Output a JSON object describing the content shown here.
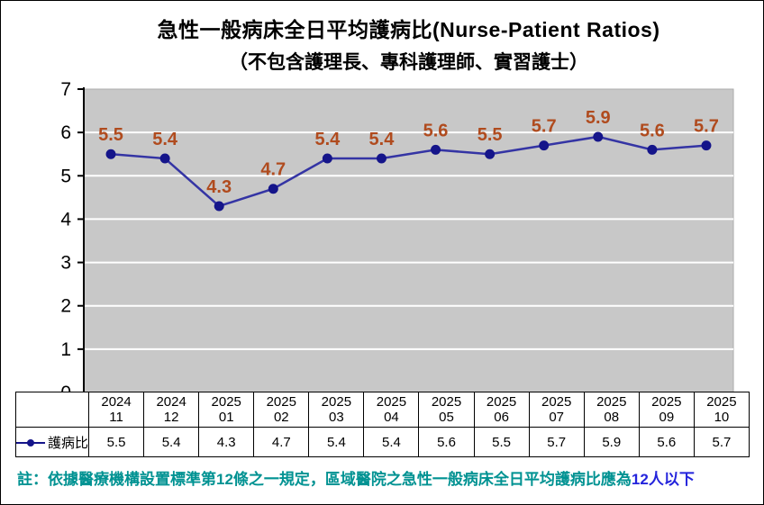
{
  "chart_data": {
    "type": "line",
    "title": "急性一般病床全日平均護病比(Nurse-Patient Ratios)",
    "subtitle": "（不包含護理長、專科護理師、實習護士）",
    "categories": [
      {
        "year": "2024",
        "month": "11"
      },
      {
        "year": "2024",
        "month": "12"
      },
      {
        "year": "2025",
        "month": "01"
      },
      {
        "year": "2025",
        "month": "02"
      },
      {
        "year": "2025",
        "month": "03"
      },
      {
        "year": "2025",
        "month": "04"
      },
      {
        "year": "2025",
        "month": "05"
      },
      {
        "year": "2025",
        "month": "06"
      },
      {
        "year": "2025",
        "month": "07"
      },
      {
        "year": "2025",
        "month": "08"
      },
      {
        "year": "2025",
        "month": "09"
      },
      {
        "year": "2025",
        "month": "10"
      }
    ],
    "series": [
      {
        "name": "護病比",
        "values": [
          5.5,
          5.4,
          4.3,
          4.7,
          5.4,
          5.4,
          5.6,
          5.5,
          5.7,
          5.9,
          5.6,
          5.7
        ]
      }
    ],
    "ylim": [
      0,
      7
    ],
    "yticks": [
      0,
      1,
      2,
      3,
      4,
      5,
      6,
      7
    ],
    "grid": true,
    "legend_position": "table-left",
    "marker": "circle"
  },
  "note": {
    "text": "註：依據醫療機構設置標準第12條之一規定，區域醫院之急性一般病床全日平均護病比應為",
    "highlight": "12人以下"
  },
  "colors": {
    "plot_bg": "#C8C8C8",
    "gridline": "#FFFFFF",
    "axis": "#000000",
    "line": "#3434A4",
    "marker": "#15158A",
    "data_label": "#B04B1E",
    "note_teal": "#009292",
    "note_blue": "#2424DC"
  }
}
